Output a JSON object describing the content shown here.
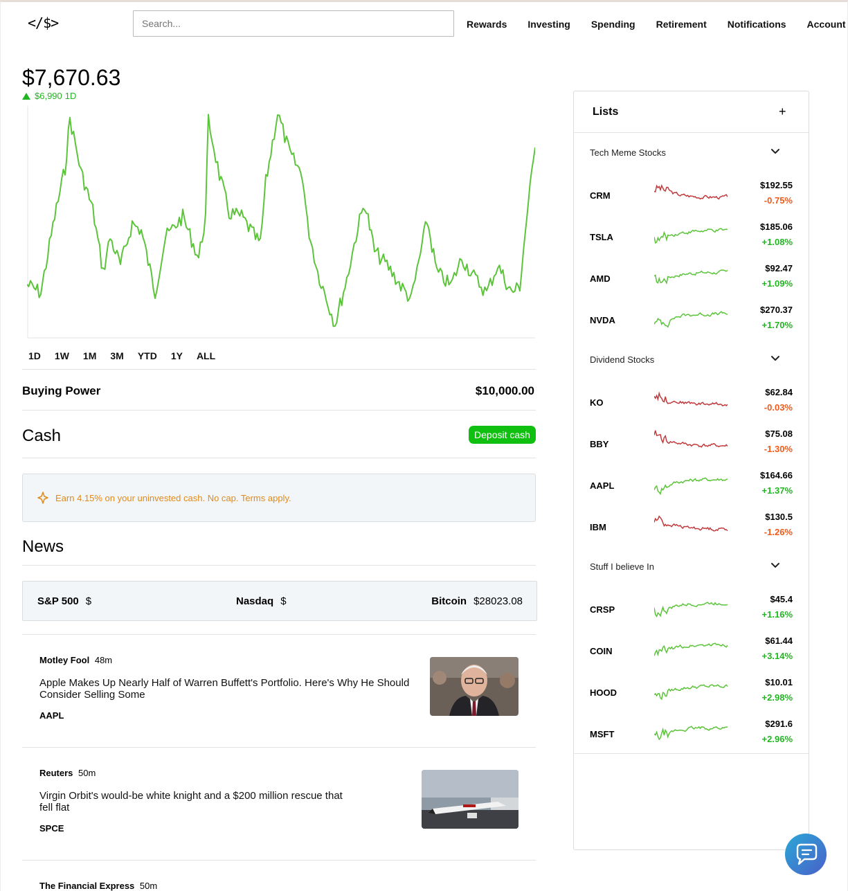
{
  "header": {
    "logo": "</$>",
    "search_placeholder": "Search...",
    "nav": [
      "Rewards",
      "Investing",
      "Spending",
      "Retirement",
      "Notifications",
      "Account"
    ]
  },
  "portfolio": {
    "value": "$7,670.63",
    "change": "$6,990",
    "period": "1D",
    "ranges": [
      "1D",
      "1W",
      "1M",
      "3M",
      "YTD",
      "1Y",
      "ALL"
    ],
    "line_color": "#5cc43a"
  },
  "buying_power": {
    "label": "Buying Power",
    "value": "$10,000.00"
  },
  "cash": {
    "title": "Cash",
    "deposit_label": "Deposit cash",
    "promo_text": "Earn 4.15% on your uninvested cash. No cap. Terms apply."
  },
  "news": {
    "title": "News",
    "indices": [
      {
        "name": "S&P 500",
        "value": "$"
      },
      {
        "name": "Nasdaq",
        "value": "$"
      },
      {
        "name": "Bitcoin",
        "value": "$28023.08"
      }
    ],
    "articles": [
      {
        "source": "Motley Fool",
        "age": "48m",
        "headline": "Apple Makes Up Nearly Half of Warren Buffett's Portfolio. Here's Why He Should Consider Selling Some",
        "ticker": "AAPL"
      },
      {
        "source": "Reuters",
        "age": "50m",
        "headline": "Virgin Orbit's would-be white knight and a $200 million rescue that fell flat",
        "ticker": "SPCE"
      },
      {
        "source": "The Financial Express",
        "age": "50m"
      }
    ]
  },
  "lists": {
    "title": "Lists",
    "add_label": "+",
    "groups": [
      {
        "name": "Tech Meme Stocks",
        "items": [
          {
            "ticker": "CRM",
            "price": "$192.55",
            "change": "-0.75%",
            "trend": "down"
          },
          {
            "ticker": "TSLA",
            "price": "$185.06",
            "change": "+1.08%",
            "trend": "up"
          },
          {
            "ticker": "AMD",
            "price": "$92.47",
            "change": "+1.09%",
            "trend": "up"
          },
          {
            "ticker": "NVDA",
            "price": "$270.37",
            "change": "+1.70%",
            "trend": "up"
          }
        ]
      },
      {
        "name": "Dividend Stocks",
        "items": [
          {
            "ticker": "KO",
            "price": "$62.84",
            "change": "-0.03%",
            "trend": "down"
          },
          {
            "ticker": "BBY",
            "price": "$75.08",
            "change": "-1.30%",
            "trend": "down"
          },
          {
            "ticker": "AAPL",
            "price": "$164.66",
            "change": "+1.37%",
            "trend": "up"
          },
          {
            "ticker": "IBM",
            "price": "$130.5",
            "change": "-1.26%",
            "trend": "down"
          }
        ]
      },
      {
        "name": "Stuff I believe In",
        "items": [
          {
            "ticker": "CRSP",
            "price": "$45.4",
            "change": "+1.16%",
            "trend": "up"
          },
          {
            "ticker": "COIN",
            "price": "$61.44",
            "change": "+3.14%",
            "trend": "up"
          },
          {
            "ticker": "HOOD",
            "price": "$10.01",
            "change": "+2.98%",
            "trend": "up"
          },
          {
            "ticker": "MSFT",
            "price": "$291.6",
            "change": "+2.96%",
            "trend": "up"
          }
        ]
      }
    ]
  },
  "colors": {
    "up": "#22b522",
    "down": "#f05a1a",
    "up_line": "#5cc43a",
    "down_line": "#c0393b"
  }
}
